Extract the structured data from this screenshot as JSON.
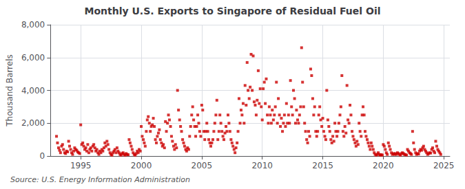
{
  "chart_data": {
    "type": "scatter",
    "title": "Monthly U.S. Exports to Singapore of Residual Fuel Oil",
    "ylabel": "Thousand Barrels",
    "source": "Source: U.S. Energy Information Administration",
    "color": "#cc0000",
    "marker": "square",
    "grid": true,
    "xlim": [
      1992.5,
      2025.5
    ],
    "xticks": [
      1995,
      2000,
      2005,
      2010,
      2015,
      2020,
      2025
    ],
    "ylim": [
      0,
      8000
    ],
    "yticks": [
      0,
      {
        "value": 2000,
        "label": "2,000"
      },
      {
        "value": 4000,
        "label": "4,000"
      },
      {
        "value": 6000,
        "label": "6,000"
      },
      {
        "value": 8000,
        "label": "8,000"
      }
    ],
    "x": [
      1993.0,
      1993.08,
      1993.17,
      1993.25,
      1993.33,
      1993.42,
      1993.5,
      1993.58,
      1993.67,
      1993.75,
      1993.83,
      1993.92,
      1994.0,
      1994.08,
      1994.17,
      1994.25,
      1994.33,
      1994.42,
      1994.5,
      1994.58,
      1994.67,
      1994.75,
      1994.83,
      1994.92,
      1995.0,
      1995.08,
      1995.17,
      1995.25,
      1995.33,
      1995.42,
      1995.5,
      1995.58,
      1995.67,
      1995.75,
      1995.83,
      1995.92,
      1996.0,
      1996.08,
      1996.17,
      1996.25,
      1996.33,
      1996.42,
      1996.5,
      1996.58,
      1996.67,
      1996.75,
      1996.83,
      1996.92,
      1997.0,
      1997.08,
      1997.17,
      1997.25,
      1997.33,
      1997.42,
      1997.5,
      1997.58,
      1997.67,
      1997.75,
      1997.83,
      1997.92,
      1998.0,
      1998.08,
      1998.17,
      1998.25,
      1998.33,
      1998.42,
      1998.5,
      1998.58,
      1998.67,
      1998.75,
      1998.83,
      1998.92,
      1999.0,
      1999.08,
      1999.17,
      1999.25,
      1999.33,
      1999.42,
      1999.5,
      1999.58,
      1999.67,
      1999.75,
      1999.83,
      1999.92,
      2000.0,
      2000.08,
      2000.17,
      2000.25,
      2000.33,
      2000.42,
      2000.5,
      2000.58,
      2000.67,
      2000.75,
      2000.83,
      2000.92,
      2001.0,
      2001.08,
      2001.17,
      2001.25,
      2001.33,
      2001.42,
      2001.5,
      2001.58,
      2001.67,
      2001.75,
      2001.83,
      2001.92,
      2002.0,
      2002.08,
      2002.17,
      2002.25,
      2002.33,
      2002.42,
      2002.5,
      2002.58,
      2002.67,
      2002.75,
      2002.83,
      2002.92,
      2003.0,
      2003.08,
      2003.17,
      2003.25,
      2003.33,
      2003.42,
      2003.5,
      2003.58,
      2003.67,
      2003.75,
      2003.83,
      2003.92,
      2004.0,
      2004.08,
      2004.17,
      2004.25,
      2004.33,
      2004.42,
      2004.5,
      2004.58,
      2004.67,
      2004.75,
      2004.83,
      2004.92,
      2005.0,
      2005.08,
      2005.17,
      2005.25,
      2005.33,
      2005.42,
      2005.5,
      2005.58,
      2005.67,
      2005.75,
      2005.83,
      2005.92,
      2006.0,
      2006.08,
      2006.17,
      2006.25,
      2006.33,
      2006.42,
      2006.5,
      2006.58,
      2006.67,
      2006.75,
      2006.83,
      2006.92,
      2007.0,
      2007.08,
      2007.17,
      2007.25,
      2007.33,
      2007.42,
      2007.5,
      2007.58,
      2007.67,
      2007.75,
      2007.83,
      2007.92,
      2008.0,
      2008.08,
      2008.17,
      2008.25,
      2008.33,
      2008.42,
      2008.5,
      2008.58,
      2008.67,
      2008.75,
      2008.83,
      2008.92,
      2009.0,
      2009.08,
      2009.17,
      2009.25,
      2009.33,
      2009.42,
      2009.5,
      2009.58,
      2009.67,
      2009.75,
      2009.83,
      2009.92,
      2010.0,
      2010.08,
      2010.17,
      2010.25,
      2010.33,
      2010.42,
      2010.5,
      2010.58,
      2010.67,
      2010.75,
      2010.83,
      2010.92,
      2011.0,
      2011.08,
      2011.17,
      2011.25,
      2011.33,
      2011.42,
      2011.5,
      2011.58,
      2011.67,
      2011.75,
      2011.83,
      2011.92,
      2012.0,
      2012.08,
      2012.17,
      2012.25,
      2012.33,
      2012.42,
      2012.5,
      2012.58,
      2012.67,
      2012.75,
      2012.83,
      2012.92,
      2013.0,
      2013.08,
      2013.17,
      2013.25,
      2013.33,
      2013.42,
      2013.5,
      2013.58,
      2013.67,
      2013.75,
      2013.83,
      2013.92,
      2014.0,
      2014.08,
      2014.17,
      2014.25,
      2014.33,
      2014.42,
      2014.5,
      2014.58,
      2014.67,
      2014.75,
      2014.83,
      2014.92,
      2015.0,
      2015.08,
      2015.17,
      2015.25,
      2015.33,
      2015.42,
      2015.5,
      2015.58,
      2015.67,
      2015.75,
      2015.83,
      2015.92,
      2016.0,
      2016.08,
      2016.17,
      2016.25,
      2016.33,
      2016.42,
      2016.5,
      2016.58,
      2016.67,
      2016.75,
      2016.83,
      2016.92,
      2017.0,
      2017.08,
      2017.17,
      2017.25,
      2017.33,
      2017.42,
      2017.5,
      2017.58,
      2017.67,
      2017.75,
      2017.83,
      2017.92,
      2018.0,
      2018.08,
      2018.17,
      2018.25,
      2018.33,
      2018.42,
      2018.5,
      2018.58,
      2018.67,
      2018.75,
      2018.83,
      2018.92,
      2019.0,
      2019.08,
      2019.17,
      2019.25,
      2019.33,
      2019.42,
      2019.5,
      2019.58,
      2019.67,
      2019.75,
      2019.83,
      2019.92,
      2020.0,
      2020.08,
      2020.17,
      2020.25,
      2020.33,
      2020.42,
      2020.5,
      2020.58,
      2020.67,
      2020.75,
      2020.83,
      2020.92,
      2021.0,
      2021.08,
      2021.17,
      2021.25,
      2021.33,
      2021.42,
      2021.5,
      2021.58,
      2021.67,
      2021.75,
      2021.83,
      2021.92,
      2022.0,
      2022.08,
      2022.17,
      2022.25,
      2022.33,
      2022.42,
      2022.5,
      2022.58,
      2022.67,
      2022.75,
      2022.83,
      2022.92,
      2023.0,
      2023.08,
      2023.17,
      2023.25,
      2023.33,
      2023.42,
      2023.5,
      2023.58,
      2023.67,
      2023.75,
      2023.83,
      2023.92,
      2024.0,
      2024.08,
      2024.17,
      2024.25,
      2024.33,
      2024.42,
      2024.5,
      2024.58,
      2024.67,
      2024.75
    ],
    "values": [
      1200,
      800,
      500,
      350,
      200,
      600,
      700,
      400,
      200,
      150,
      300,
      250,
      900,
      600,
      400,
      200,
      100,
      300,
      500,
      400,
      350,
      250,
      200,
      150,
      1900,
      700,
      800,
      600,
      400,
      500,
      300,
      700,
      200,
      400,
      500,
      300,
      600,
      700,
      500,
      300,
      400,
      200,
      100,
      300,
      200,
      400,
      300,
      500,
      800,
      600,
      900,
      700,
      400,
      200,
      100,
      50,
      200,
      300,
      400,
      200,
      500,
      300,
      200,
      100,
      50,
      150,
      200,
      100,
      50,
      150,
      100,
      80,
      1000,
      800,
      600,
      400,
      200,
      100,
      50,
      150,
      300,
      200,
      400,
      300,
      1800,
      1200,
      1000,
      800,
      600,
      1500,
      2200,
      2400,
      2000,
      1500,
      1800,
      1900,
      2300,
      1800,
      1000,
      800,
      1200,
      1400,
      1600,
      1000,
      800,
      600,
      700,
      500,
      2100,
      1500,
      2000,
      2500,
      2200,
      1800,
      1200,
      900,
      600,
      400,
      700,
      500,
      4000,
      2800,
      2200,
      1800,
      1500,
      1000,
      800,
      600,
      400,
      300,
      500,
      400,
      1200,
      1800,
      2500,
      3000,
      2200,
      1800,
      1200,
      1800,
      2500,
      2000,
      1500,
      1200,
      3100,
      2800,
      1500,
      1000,
      1500,
      2000,
      1500,
      1000,
      800,
      600,
      800,
      1000,
      1500,
      2000,
      2500,
      3400,
      1000,
      1500,
      2500,
      2000,
      1500,
      1200,
      1000,
      1400,
      1800,
      1500,
      2500,
      2000,
      1500,
      1000,
      800,
      600,
      400,
      200,
      500,
      800,
      1500,
      3500,
      2000,
      2800,
      2500,
      3200,
      2000,
      4300,
      3100,
      5700,
      4000,
      3500,
      4200,
      6200,
      4000,
      6100,
      3300,
      3100,
      2500,
      3400,
      5200,
      3200,
      4100,
      3000,
      2200,
      4100,
      4500,
      3200,
      4700,
      2500,
      2000,
      3000,
      2500,
      2000,
      2800,
      2200,
      2500,
      3000,
      4500,
      2000,
      3500,
      2500,
      1800,
      2300,
      1500,
      2000,
      2500,
      1800,
      3200,
      2000,
      2500,
      2000,
      4600,
      3000,
      2500,
      4000,
      3500,
      2000,
      2800,
      2200,
      2000,
      2500,
      3000,
      6600,
      4500,
      3000,
      2000,
      1500,
      1000,
      800,
      1500,
      1200,
      5300,
      4900,
      3500,
      2500,
      3000,
      1500,
      1200,
      1500,
      2500,
      3000,
      2200,
      1800,
      2300,
      1500,
      1200,
      1000,
      4000,
      2200,
      1800,
      1500,
      1000,
      800,
      1200,
      900,
      2000,
      1500,
      1200,
      1500,
      2000,
      2500,
      3000,
      4900,
      1500,
      1200,
      1800,
      1400,
      4300,
      2200,
      2000,
      3100,
      2500,
      1500,
      1200,
      1000,
      800,
      600,
      900,
      700,
      2000,
      1500,
      1200,
      2500,
      3000,
      2500,
      1500,
      1200,
      1000,
      800,
      600,
      400,
      800,
      600,
      400,
      200,
      100,
      50,
      100,
      200,
      100,
      50,
      80,
      60,
      700,
      600,
      400,
      200,
      100,
      800,
      600,
      400,
      200,
      100,
      150,
      100,
      150,
      100,
      200,
      150,
      100,
      50,
      150,
      200,
      150,
      100,
      80,
      60,
      400,
      300,
      200,
      150,
      100,
      1500,
      800,
      400,
      200,
      100,
      150,
      120,
      300,
      400,
      350,
      500,
      600,
      400,
      300,
      200,
      100,
      150,
      200,
      180,
      400,
      500,
      300,
      200,
      900,
      600,
      400,
      300,
      200,
      100
    ]
  }
}
